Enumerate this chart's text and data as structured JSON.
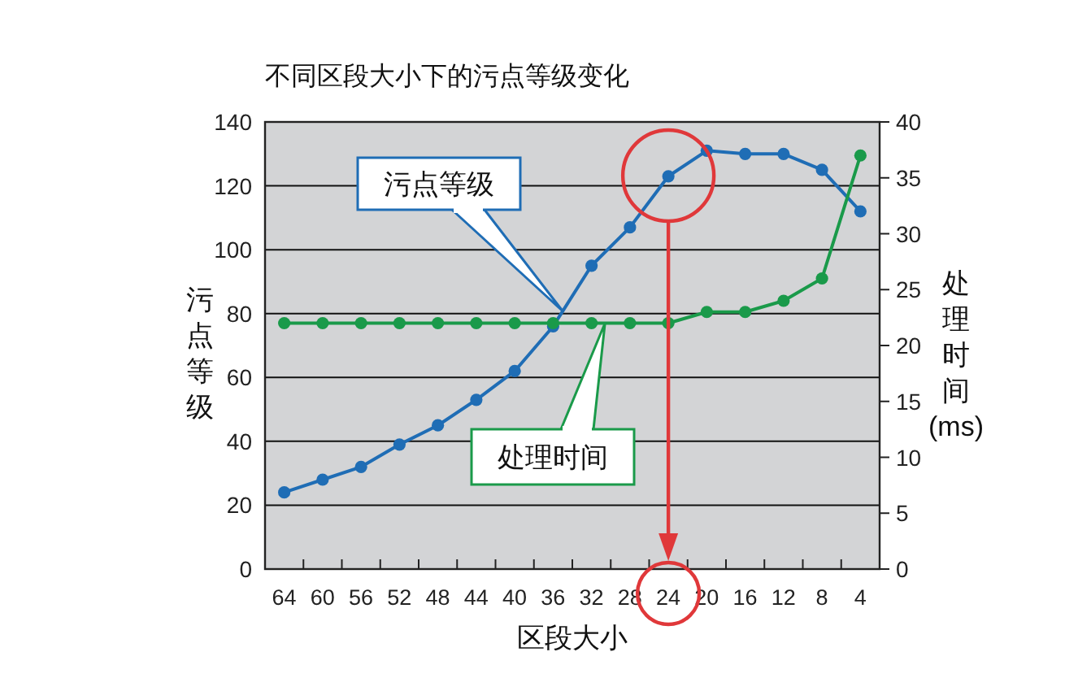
{
  "chart_data": {
    "type": "line",
    "title": "不同区段大小下的污点等级变化",
    "xlabel": "区段大小",
    "ylabel": "污点等级",
    "y2label": "处理时间 (ms)",
    "categories": [
      "64",
      "60",
      "56",
      "52",
      "48",
      "44",
      "40",
      "36",
      "32",
      "28",
      "24",
      "20",
      "16",
      "12",
      "8",
      "4"
    ],
    "series": [
      {
        "color": "#1f6db5",
        "values": [
          24,
          28,
          32,
          39,
          45,
          53,
          62,
          76,
          95,
          107,
          123,
          131,
          130,
          130,
          125,
          112
        ]
      },
      {
        "color": "#1a9a4a",
        "axis": "y2",
        "values": [
          22,
          22,
          22,
          22,
          22,
          22,
          22,
          22,
          22,
          22,
          22,
          23,
          23,
          24,
          26,
          37
        ]
      }
    ],
    "annotations": [
      "污点等级",
      "处理时间"
    ],
    "ylim": [
      0,
      140
    ],
    "yticks": [
      0,
      20,
      40,
      60,
      80,
      100,
      120,
      140
    ],
    "y2lim": [
      0,
      40
    ],
    "y2ticks": [
      0,
      5,
      10,
      15,
      20,
      25,
      30,
      35,
      40
    ],
    "grid": "y",
    "marker": "circle",
    "line_style": "solid"
  }
}
